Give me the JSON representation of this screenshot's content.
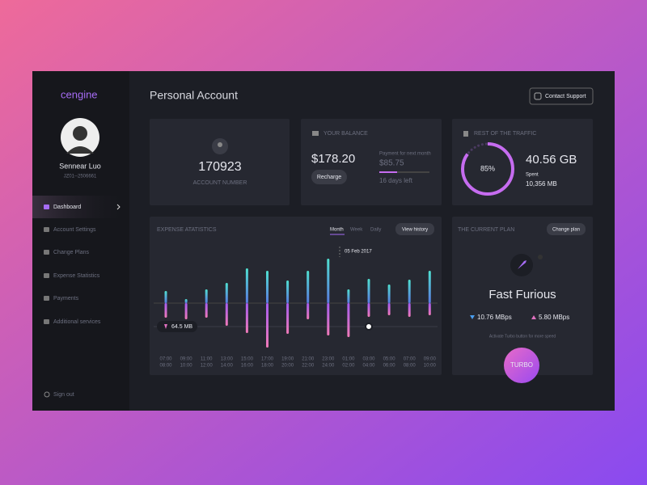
{
  "sidebar": {
    "logo": "cengine",
    "user_name": "Sennear Luo",
    "user_id": "JZ01--2506661",
    "menu": [
      "Dashboard",
      "Account Settings",
      "Change Plans",
      "Expense Statistics",
      "Payments",
      "Additional services"
    ],
    "sign_out": "Sign out"
  },
  "header": {
    "title": "Personal Account",
    "contact_button": "Contact Support"
  },
  "account": {
    "number": "170923",
    "label": "ACCOUNT NUMBER"
  },
  "balance": {
    "title": "YOUR BALANCE",
    "amount": "$178.20",
    "recharge": "Recharge",
    "next_payment_label": "Payment for next month",
    "next_payment": "$85.75",
    "days_left": "16 days left"
  },
  "traffic": {
    "title": "REST OF THE TRAFFIC",
    "percent": {
      "value": 85,
      "label": "85%"
    },
    "remaining": "40.56 GB",
    "spent_label": "Spent",
    "spent": "10,356 MB"
  },
  "expense": {
    "title": "EXPENSE ATATISTICS",
    "tabs": [
      "Month",
      "Week",
      "Daily"
    ],
    "history_button": "View history",
    "marker_date": "05 Feb 2017",
    "marker_value": "64.5 MB",
    "times_from": [
      "07:00",
      "09:00",
      "11:00",
      "13:00",
      "15:00",
      "17:00",
      "19:00",
      "21:00",
      "23:00",
      "01:00",
      "03:00",
      "05:00",
      "07:00",
      "09:00"
    ],
    "times_to": [
      "08:00",
      "10:00",
      "12:00",
      "14:00",
      "16:00",
      "18:00",
      "20:00",
      "22:00",
      "24:00",
      "02:00",
      "04:00",
      "06:00",
      "08:00",
      "10:00"
    ],
    "upload": [
      15,
      5,
      17,
      25,
      43,
      40,
      28,
      40,
      55,
      17,
      30,
      23,
      29,
      40
    ],
    "download": [
      18,
      20,
      18,
      28,
      37,
      55,
      38,
      20,
      40,
      42,
      17,
      15,
      17,
      15
    ]
  },
  "plan": {
    "title": "THE CURRENT PLAN",
    "change_button": "Change plan",
    "name": "Fast Furious",
    "download_speed": "10.76 MBps",
    "upload_speed": "5.80 MBps",
    "hint": "Activate Turbo button for more speed",
    "turbo_button": "TURBO"
  }
}
